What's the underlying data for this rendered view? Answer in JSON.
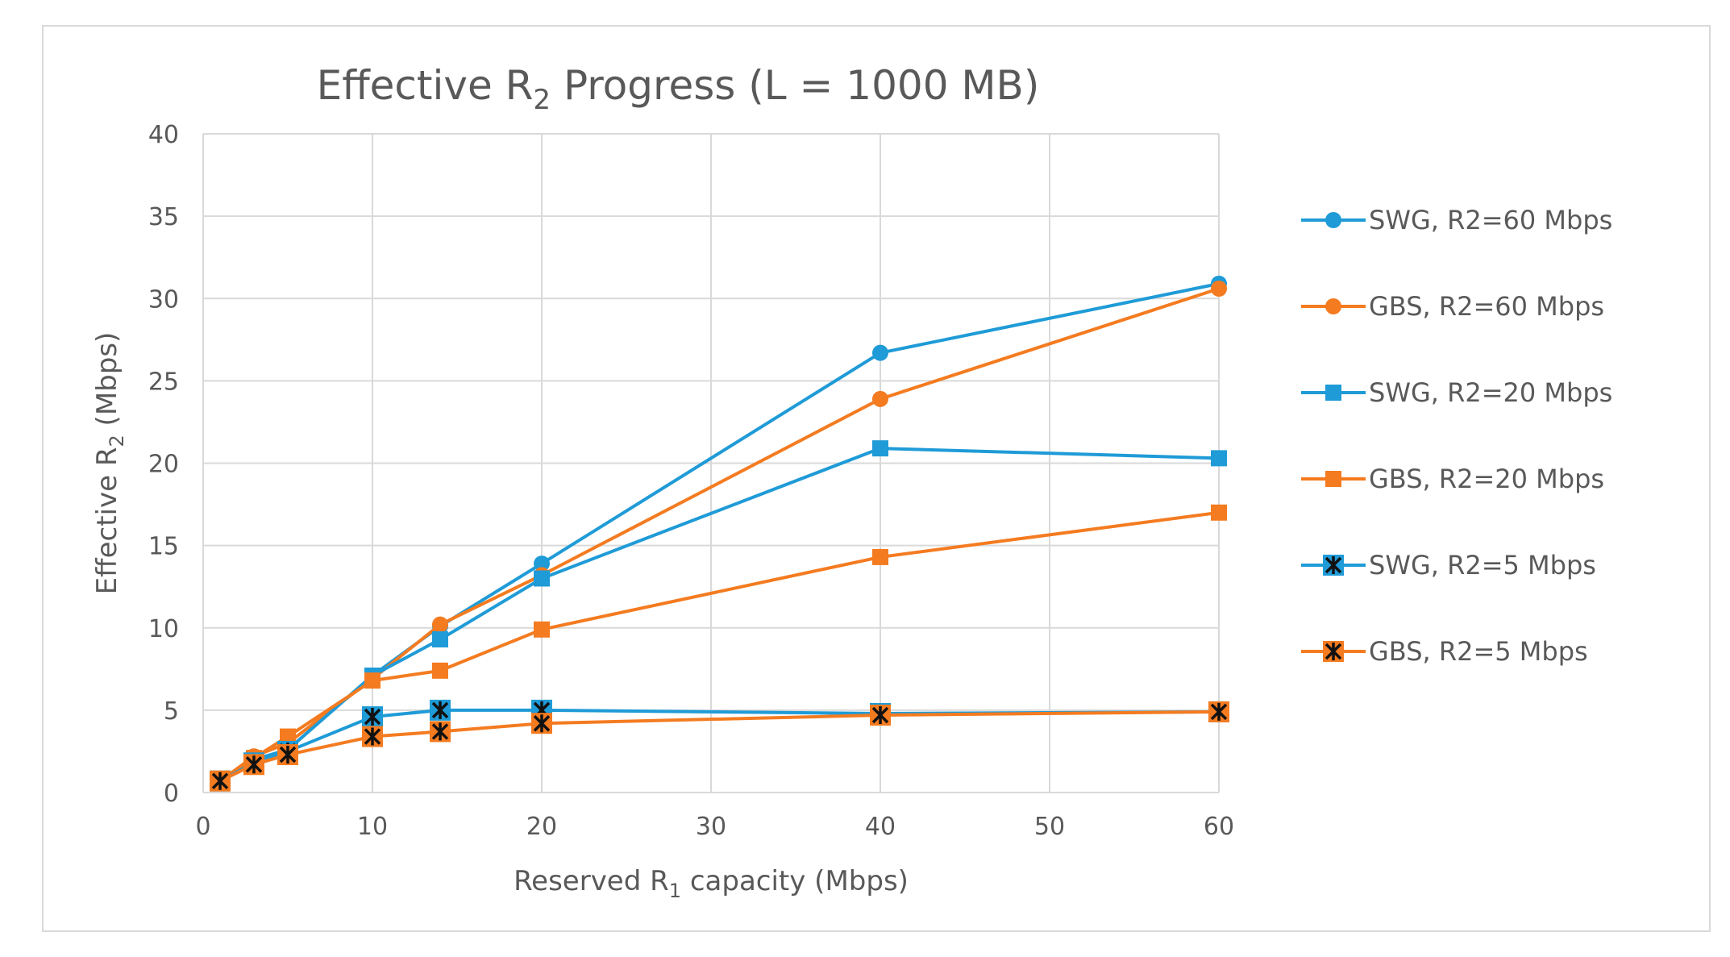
{
  "chart_data": {
    "type": "line",
    "title": {
      "main": "Effective R",
      "sub": "2",
      "rest": " Progress (L = 1000 MB)"
    },
    "xlabel": {
      "pre": "Reserved  R",
      "sub": "1",
      "post": " capacity (Mbps)"
    },
    "ylabel": {
      "pre": "Effective R",
      "sub": "2",
      "post": "  (Mbps)"
    },
    "xlim": [
      0,
      60
    ],
    "ylim": [
      0,
      40
    ],
    "xticks": [
      0,
      10,
      20,
      30,
      40,
      50,
      60
    ],
    "yticks": [
      0,
      5,
      10,
      15,
      20,
      25,
      30,
      35,
      40
    ],
    "grid": true,
    "legend_position": "right",
    "x": [
      1,
      3,
      5,
      10,
      14,
      20,
      40,
      60
    ],
    "series": [
      {
        "name": "SWG, R2=60 Mbps",
        "color": "#1f9bd7",
        "marker": "circle",
        "values": [
          0.7,
          2.0,
          2.6,
          7.1,
          10.1,
          13.9,
          26.7,
          30.9
        ]
      },
      {
        "name": "GBS, R2=60 Mbps",
        "color": "#f47b20",
        "marker": "circle",
        "values": [
          0.7,
          2.2,
          3.0,
          6.9,
          10.2,
          13.2,
          23.9,
          30.6
        ]
      },
      {
        "name": "SWG, R2=20 Mbps",
        "color": "#1f9bd7",
        "marker": "square",
        "values": [
          0.7,
          2.0,
          2.6,
          7.1,
          9.3,
          13.0,
          20.9,
          20.3
        ]
      },
      {
        "name": "GBS, R2=20 Mbps",
        "color": "#f47b20",
        "marker": "square",
        "values": [
          0.7,
          2.1,
          3.4,
          6.8,
          7.4,
          9.9,
          14.3,
          17.0
        ]
      },
      {
        "name": "SWG, R2=5 Mbps",
        "color": "#1f9bd7",
        "marker": "star",
        "values": [
          0.7,
          1.8,
          2.5,
          4.6,
          5.0,
          5.0,
          4.8,
          4.9
        ]
      },
      {
        "name": "GBS, R2=5 Mbps",
        "color": "#f47b20",
        "marker": "star",
        "values": [
          0.7,
          1.7,
          2.3,
          3.4,
          3.7,
          4.2,
          4.7,
          4.9
        ]
      }
    ]
  }
}
